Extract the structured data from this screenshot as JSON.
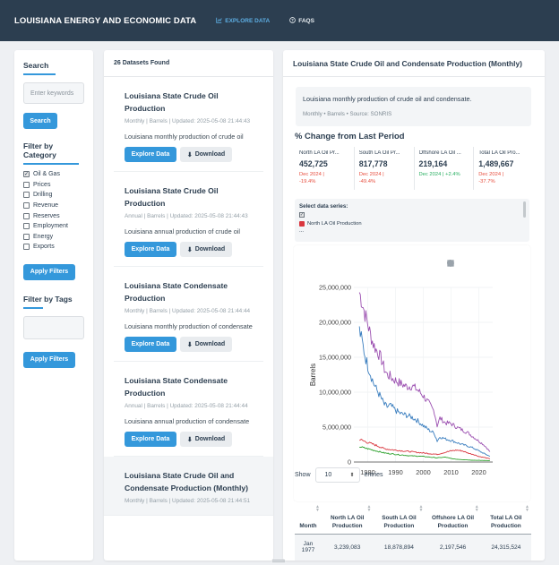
{
  "navbar": {
    "brand": "LOUISIANA ENERGY AND ECONOMIC DATA",
    "explore_label": "EXPLORE DATA",
    "faqs_label": "FAQS"
  },
  "sidebar": {
    "search_title": "Search",
    "search_placeholder": "Enter keywords",
    "search_button": "Search",
    "category_title": "Filter by Category",
    "categories": [
      {
        "label": "Oil & Gas",
        "checked": true
      },
      {
        "label": "Prices",
        "checked": false
      },
      {
        "label": "Drilling",
        "checked": false
      },
      {
        "label": "Revenue",
        "checked": false
      },
      {
        "label": "Reserves",
        "checked": false
      },
      {
        "label": "Employment",
        "checked": false
      },
      {
        "label": "Energy",
        "checked": false
      },
      {
        "label": "Exports",
        "checked": false
      }
    ],
    "apply_label": "Apply Filters",
    "tags_title": "Filter by Tags",
    "apply_label_2": "Apply Filters"
  },
  "datasets": {
    "header": "26 Datasets Found",
    "explore_label": "Explore Data",
    "download_label": "Download",
    "items": [
      {
        "title": "Louisiana State Crude Oil Production",
        "meta": "Monthly | Barrels | Updated: 2025-05-08 21:44:43",
        "desc": "Louisiana monthly production of crude oil"
      },
      {
        "title": "Louisiana State Crude Oil Production",
        "meta": "Annual | Barrels | Updated: 2025-05-08 21:44:43",
        "desc": "Louisiana annual production of crude oil"
      },
      {
        "title": "Louisiana State Condensate Production",
        "meta": "Monthly | Barrels | Updated: 2025-05-08 21:44:44",
        "desc": "Louisiana monthly production of condensate"
      },
      {
        "title": "Louisiana State Condensate Production",
        "meta": "Annual | Barrels | Updated: 2025-05-08 21:44:44",
        "desc": "Louisiana annual production of condensate"
      },
      {
        "title": "Louisiana State Crude Oil and Condensate Production (Monthly)",
        "meta": "Monthly | Barrels | Updated: 2025-05-08 21:44:51",
        "desc": ""
      }
    ]
  },
  "main": {
    "title": "Louisiana State Crude Oil and Condensate Production (Monthly)",
    "description": "Louisiana monthly production of crude oil and condensate.",
    "meta": "Monthly • Barrels • Source: SONRIS",
    "pct_title": "% Change from Last Period",
    "stats": [
      {
        "label": "North LA Oil Pr...",
        "value": "452,725",
        "period": "Dec 2024 |",
        "change": "-19.4%",
        "direction": "neg"
      },
      {
        "label": "South LA Oil Pr...",
        "value": "817,778",
        "period": "Dec 2024 |",
        "change": "-49.4%",
        "direction": "neg"
      },
      {
        "label": "Offshore LA Oil ...",
        "value": "219,164",
        "period": "Dec 2024 |",
        "change": "+2.4%",
        "direction": "pos"
      },
      {
        "label": "Total LA Oil Pro...",
        "value": "1,489,667",
        "period": "Dec 2024 |",
        "change": "-37.7%",
        "direction": "neg"
      }
    ],
    "series_box": {
      "title": "Select data series:",
      "item": "North LA Oil Production",
      "more": "..."
    },
    "entries": {
      "show": "Show",
      "value": "10",
      "suffix": "entries"
    },
    "table": {
      "headers": [
        "Month",
        "North LA Oil Production",
        "South LA Oil Production",
        "Offshore LA Oil Production",
        "Total LA Oil Production"
      ],
      "rows": [
        [
          "Jan 1977",
          "3,239,083",
          "18,878,894",
          "2,197,546",
          "24,315,524"
        ]
      ]
    }
  },
  "colors": {
    "navbar": "#2c3e50",
    "accent": "#3498db",
    "north": "#d9363e",
    "south": "#3a7ebf",
    "offshore": "#2ca02c",
    "total": "#9b4fb0"
  },
  "chart_data": {
    "type": "line",
    "xlabel": "",
    "ylabel": "Barrels",
    "xlim": [
      1975,
      2025
    ],
    "ylim": [
      0,
      25000000
    ],
    "xticks": [
      1980,
      1990,
      2000,
      2010,
      2020
    ],
    "yticks": [
      "0",
      "5,000,000",
      "10,000,000",
      "15,000,000",
      "20,000,000",
      "25,000,000"
    ],
    "series": [
      {
        "name": "Total LA Oil Production",
        "color": "#9b4fb0",
        "x": [
          1977,
          1978,
          1979,
          1980,
          1981,
          1982,
          1983,
          1984,
          1985,
          1986,
          1987,
          1988,
          1989,
          1990,
          1992,
          1994,
          1996,
          1998,
          2000,
          2002,
          2004,
          2005,
          2006,
          2008,
          2010,
          2012,
          2014,
          2016,
          2018,
          2020,
          2022,
          2024
        ],
        "y": [
          24315524,
          22800000,
          21200000,
          19800000,
          18200000,
          16900000,
          16100000,
          15500000,
          14600000,
          13300000,
          12500000,
          12300000,
          11900000,
          11700000,
          11200000,
          10800000,
          10900000,
          10300000,
          9500000,
          8400000,
          7200000,
          5200000,
          6300000,
          5600000,
          5500000,
          5000000,
          4600000,
          4200000,
          3600000,
          3000000,
          2400000,
          1489667
        ]
      },
      {
        "name": "South LA Oil Production",
        "color": "#3a7ebf",
        "x": [
          1977,
          1978,
          1979,
          1980,
          1981,
          1982,
          1983,
          1984,
          1985,
          1986,
          1987,
          1988,
          1989,
          1990,
          1992,
          1994,
          1996,
          1998,
          2000,
          2002,
          2004,
          2005,
          2006,
          2008,
          2010,
          2012,
          2014,
          2016,
          2018,
          2020,
          2022,
          2024
        ],
        "y": [
          18878894,
          17200000,
          15300000,
          13800000,
          12600000,
          11400000,
          10500000,
          9800000,
          9000000,
          8200000,
          7900000,
          8100000,
          7800000,
          7400000,
          6900000,
          6700000,
          6400000,
          5900000,
          5200000,
          4600000,
          4100000,
          3000000,
          3600000,
          3300000,
          3100000,
          2800000,
          2500000,
          2300000,
          2000000,
          1600000,
          1200000,
          817778
        ]
      },
      {
        "name": "North LA Oil Production",
        "color": "#d9363e",
        "x": [
          1977,
          1980,
          1983,
          1986,
          1990,
          1995,
          2000,
          2005,
          2008,
          2010,
          2012,
          2014,
          2016,
          2018,
          2020,
          2022,
          2024
        ],
        "y": [
          3239083,
          2800000,
          2400000,
          1900000,
          1700000,
          1500000,
          1300000,
          1100000,
          1400000,
          1600000,
          1700000,
          1600000,
          1300000,
          1100000,
          800000,
          650000,
          452725
        ]
      },
      {
        "name": "Offshore LA Oil Production",
        "color": "#2ca02c",
        "x": [
          1977,
          1980,
          1983,
          1986,
          1990,
          1995,
          2000,
          2005,
          2008,
          2010,
          2012,
          2014,
          2016,
          2018,
          2020,
          2022,
          2024
        ],
        "y": [
          2197546,
          1900000,
          1600000,
          1300000,
          1100000,
          900000,
          800000,
          600000,
          700000,
          500000,
          400000,
          350000,
          300000,
          260000,
          230000,
          220000,
          219164
        ]
      }
    ]
  }
}
